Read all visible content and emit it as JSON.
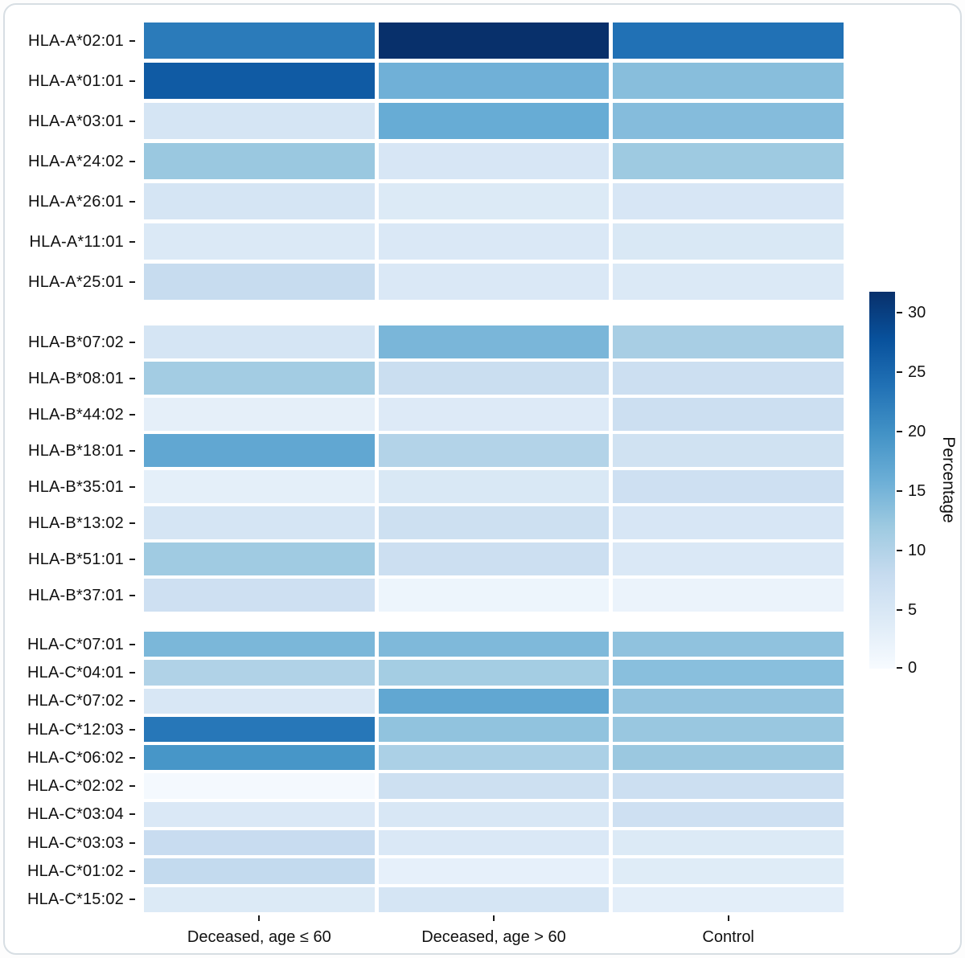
{
  "figure": {
    "background": "#ffffff",
    "border_color": "#d7dee3"
  },
  "chart_data": {
    "type": "heatmap",
    "title": "",
    "xlabel": "",
    "ylabel": "",
    "columns": [
      "Deceased, age ≤ 60",
      "Deceased, age > 60",
      "Control"
    ],
    "groups": [
      {
        "name": "HLA-A",
        "rows": [
          {
            "label": "HLA-A*02:01",
            "values": [
              22.6,
              31.7,
              23.8
            ]
          },
          {
            "label": "HLA-A*01:01",
            "values": [
              26.5,
              15.5,
              13.6
            ]
          },
          {
            "label": "HLA-A*03:01",
            "values": [
              5.4,
              16.2,
              13.8
            ]
          },
          {
            "label": "HLA-A*24:02",
            "values": [
              12.2,
              5.2,
              11.9
            ]
          },
          {
            "label": "HLA-A*26:01",
            "values": [
              5.5,
              4.3,
              5.1
            ]
          },
          {
            "label": "HLA-A*11:01",
            "values": [
              4.4,
              4.7,
              4.8
            ]
          },
          {
            "label": "HLA-A*25:01",
            "values": [
              7.8,
              4.7,
              4.4
            ]
          }
        ]
      },
      {
        "name": "HLA-B",
        "rows": [
          {
            "label": "HLA-B*07:02",
            "values": [
              5.4,
              14.7,
              10.9
            ]
          },
          {
            "label": "HLA-B*08:01",
            "values": [
              11.4,
              7.3,
              7.0
            ]
          },
          {
            "label": "HLA-B*44:02",
            "values": [
              2.9,
              4.1,
              7.0
            ]
          },
          {
            "label": "HLA-B*18:01",
            "values": [
              16.8,
              9.8,
              6.3
            ]
          },
          {
            "label": "HLA-B*35:01",
            "values": [
              3.0,
              4.8,
              6.6
            ]
          },
          {
            "label": "HLA-B*13:02",
            "values": [
              5.5,
              6.8,
              5.2
            ]
          },
          {
            "label": "HLA-B*51:01",
            "values": [
              11.7,
              7.0,
              4.7
            ]
          },
          {
            "label": "HLA-B*37:01",
            "values": [
              6.6,
              1.6,
              1.9
            ]
          }
        ]
      },
      {
        "name": "HLA-C",
        "rows": [
          {
            "label": "HLA-C*07:01",
            "values": [
              14.6,
              14.3,
              13.0
            ]
          },
          {
            "label": "HLA-C*04:01",
            "values": [
              10.1,
              11.3,
              13.5
            ]
          },
          {
            "label": "HLA-C*07:02",
            "values": [
              4.9,
              16.8,
              12.7
            ]
          },
          {
            "label": "HLA-C*12:03",
            "values": [
              23.1,
              12.9,
              12.3
            ]
          },
          {
            "label": "HLA-C*06:02",
            "values": [
              19.3,
              10.6,
              12.1
            ]
          },
          {
            "label": "HLA-C*02:02",
            "values": [
              0.5,
              6.8,
              7.0
            ]
          },
          {
            "label": "HLA-C*03:04",
            "values": [
              4.7,
              4.9,
              6.6
            ]
          },
          {
            "label": "HLA-C*03:03",
            "values": [
              7.6,
              4.7,
              4.3
            ]
          },
          {
            "label": "HLA-C*01:02",
            "values": [
              8.2,
              2.7,
              3.8
            ]
          },
          {
            "label": "HLA-C*15:02",
            "values": [
              4.3,
              5.5,
              3.2
            ]
          }
        ]
      }
    ],
    "legend": {
      "label": "Percentage",
      "min": 0,
      "max": 31.7,
      "ticks": [
        0,
        5,
        10,
        15,
        20,
        25,
        30
      ],
      "colormap": "Blues",
      "position": "right"
    },
    "layout": {
      "grid": false,
      "cell_gap_color": "#ffffff"
    }
  }
}
